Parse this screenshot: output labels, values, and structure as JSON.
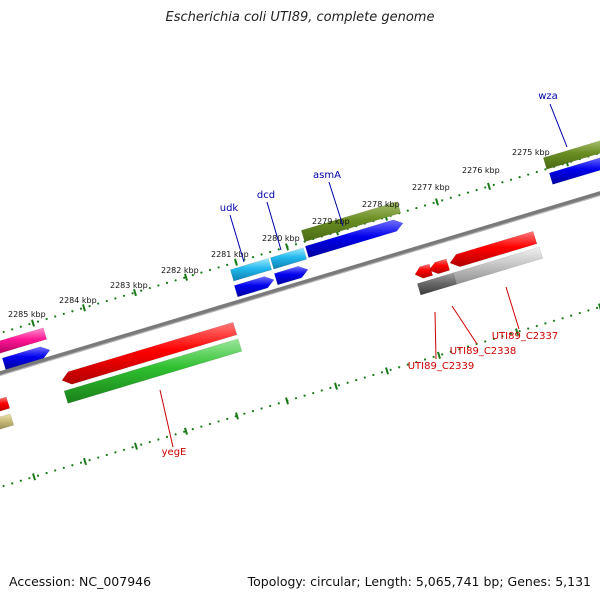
{
  "title": "Escherichia coli UTI89, complete genome",
  "footer": {
    "accession": "Accession: NC_007946",
    "summary": "Topology: circular; Length: 5,065,741 bp; Genes: 5,131"
  },
  "colors": {
    "backbone": "#7a7a7a",
    "tick": "#1a7a1a",
    "forward_label": "#0000aa",
    "reverse_label": "#cc0000"
  },
  "kbp_ticks": [
    "2275 kbp",
    "2276 kbp",
    "2277 kbp",
    "2278 kbp",
    "2279 kbp",
    "2280 kbp",
    "2281 kbp",
    "2282 kbp",
    "2283 kbp",
    "2284 kbp",
    "2285 kbp"
  ],
  "gene_labels": [
    "wza",
    "asmA",
    "dcd",
    "udk",
    "yegE",
    "UTI89_C2337",
    "UTI89_C2338",
    "UTI89_C2339"
  ]
}
